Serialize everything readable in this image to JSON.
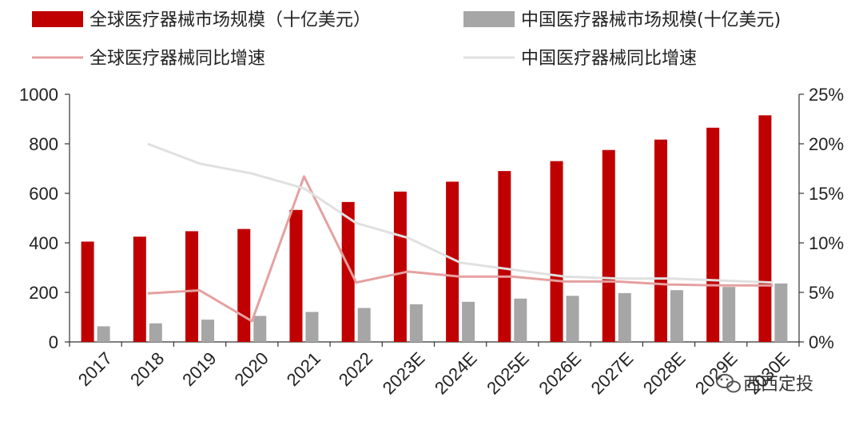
{
  "chart_data": {
    "type": "bar",
    "categories": [
      "2017",
      "2018",
      "2019",
      "2020",
      "2021",
      "2022",
      "2023E",
      "2024E",
      "2025E",
      "2026E",
      "2027E",
      "2028E",
      "2029E",
      "2030E"
    ],
    "series": [
      {
        "name": "全球医疗器械市场规模（十亿美元）",
        "kind": "bar",
        "axis": "left",
        "color": "#c00000",
        "values": [
          405,
          425,
          447,
          456,
          533,
          565,
          607,
          647,
          690,
          730,
          775,
          817,
          865,
          915
        ]
      },
      {
        "name": "中国医疗器械市场规模(十亿美元)",
        "kind": "bar",
        "axis": "left",
        "color": "#a6a6a6",
        "values": [
          63,
          75,
          90,
          105,
          121,
          137,
          152,
          162,
          175,
          186,
          197,
          209,
          222,
          236
        ]
      },
      {
        "name": "全球医疗器械同比增速",
        "kind": "line",
        "axis": "right",
        "color": "#e5a0a0",
        "values": [
          null,
          4.9,
          5.2,
          2.1,
          16.7,
          6.0,
          7.1,
          6.6,
          6.6,
          6.1,
          6.1,
          5.8,
          5.7,
          5.7
        ]
      },
      {
        "name": "中国医疗器械同比增速",
        "kind": "line",
        "axis": "right",
        "color": "#e0e0e0",
        "values": [
          null,
          20.0,
          18.0,
          17.0,
          15.5,
          12.0,
          10.5,
          8.0,
          7.3,
          6.6,
          6.4,
          6.4,
          6.2,
          6.0
        ]
      }
    ],
    "y_left": {
      "min": 0,
      "max": 1000,
      "ticks": [
        0,
        200,
        400,
        600,
        800,
        1000
      ]
    },
    "y_right": {
      "min": 0,
      "max": 25,
      "ticks": [
        "0%",
        "5%",
        "10%",
        "15%",
        "20%",
        "25%"
      ]
    },
    "legend_position": "top"
  },
  "watermark": {
    "text": "西西定投",
    "icon": "wechat-icon"
  }
}
